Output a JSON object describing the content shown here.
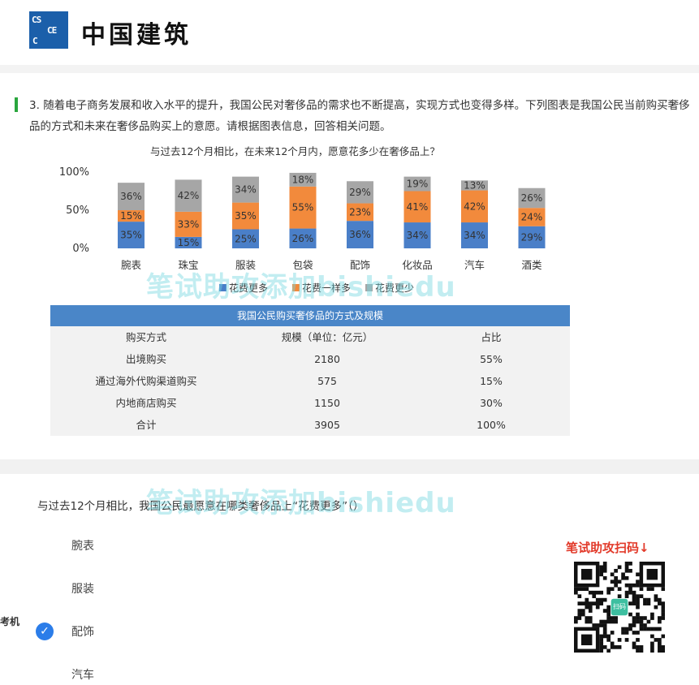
{
  "header": {
    "logo_mark": "CSCEC",
    "logo_text": "中国建筑"
  },
  "question": {
    "number": "3.",
    "text": "随着电子商务发展和收入水平的提升，我国公民对奢侈品的需求也不断提高，实现方式也变得多样。下列图表是我国公民当前购买奢侈品的方式和未来在奢侈品购买上的意愿。请根据图表信息，回答相关问题。"
  },
  "chart_data": {
    "type": "bar",
    "stacked": true,
    "title": "与过去12个月相比，在未来12个月内，愿意花多少在奢侈品上？",
    "categories": [
      "腕表",
      "珠宝",
      "服装",
      "包袋",
      "配饰",
      "化妆品",
      "汽车",
      "酒类"
    ],
    "series": [
      {
        "name": "花费更多",
        "values": [
          35,
          15,
          25,
          26,
          36,
          34,
          34,
          29
        ],
        "labels": [
          "35%",
          "15%",
          "25%",
          "26%",
          "36%",
          "34%",
          "34%",
          "29%"
        ],
        "color": "#4a7fc8"
      },
      {
        "name": "花费一样多",
        "values": [
          15,
          33,
          35,
          55,
          23,
          41,
          42,
          24
        ],
        "labels": [
          "15%",
          "33%",
          "35%",
          "55%",
          "23%",
          "41%",
          "42%",
          "24%"
        ],
        "color": "#f28a3c"
      },
      {
        "name": "花费更少",
        "values": [
          36,
          42,
          34,
          18,
          29,
          19,
          13,
          26
        ],
        "labels": [
          "36%",
          "42%",
          "34%",
          "18%",
          "29%",
          "19%",
          "13%",
          "26%"
        ],
        "color": "#a6a6a6"
      }
    ],
    "y_ticks": [
      "100%",
      "50%",
      "0%"
    ],
    "ylim": [
      0,
      100
    ],
    "legend_position": "bottom",
    "grid": false
  },
  "table": {
    "title": "我国公民购买奢侈品的方式及规模",
    "headers": [
      "购买方式",
      "规模（单位：亿元）",
      "占比"
    ],
    "rows": [
      [
        "出境购买",
        "2180",
        "55%"
      ],
      [
        "通过海外代购渠道购买",
        "575",
        "15%"
      ],
      [
        "内地商店购买",
        "1150",
        "30%"
      ],
      [
        "合计",
        "3905",
        "100%"
      ]
    ]
  },
  "question2": {
    "text": "与过去12个月相比，我国公民最愿意在哪类奢侈品上“花费更多”（）",
    "options": [
      "腕表",
      "服装",
      "配饰",
      "汽车"
    ],
    "selected_index": 2
  },
  "watermark": "笔试助攻添加bishiedu",
  "qr": {
    "label": "笔试助攻扫码↓",
    "center_text": "扫码"
  },
  "side_text": "考机"
}
